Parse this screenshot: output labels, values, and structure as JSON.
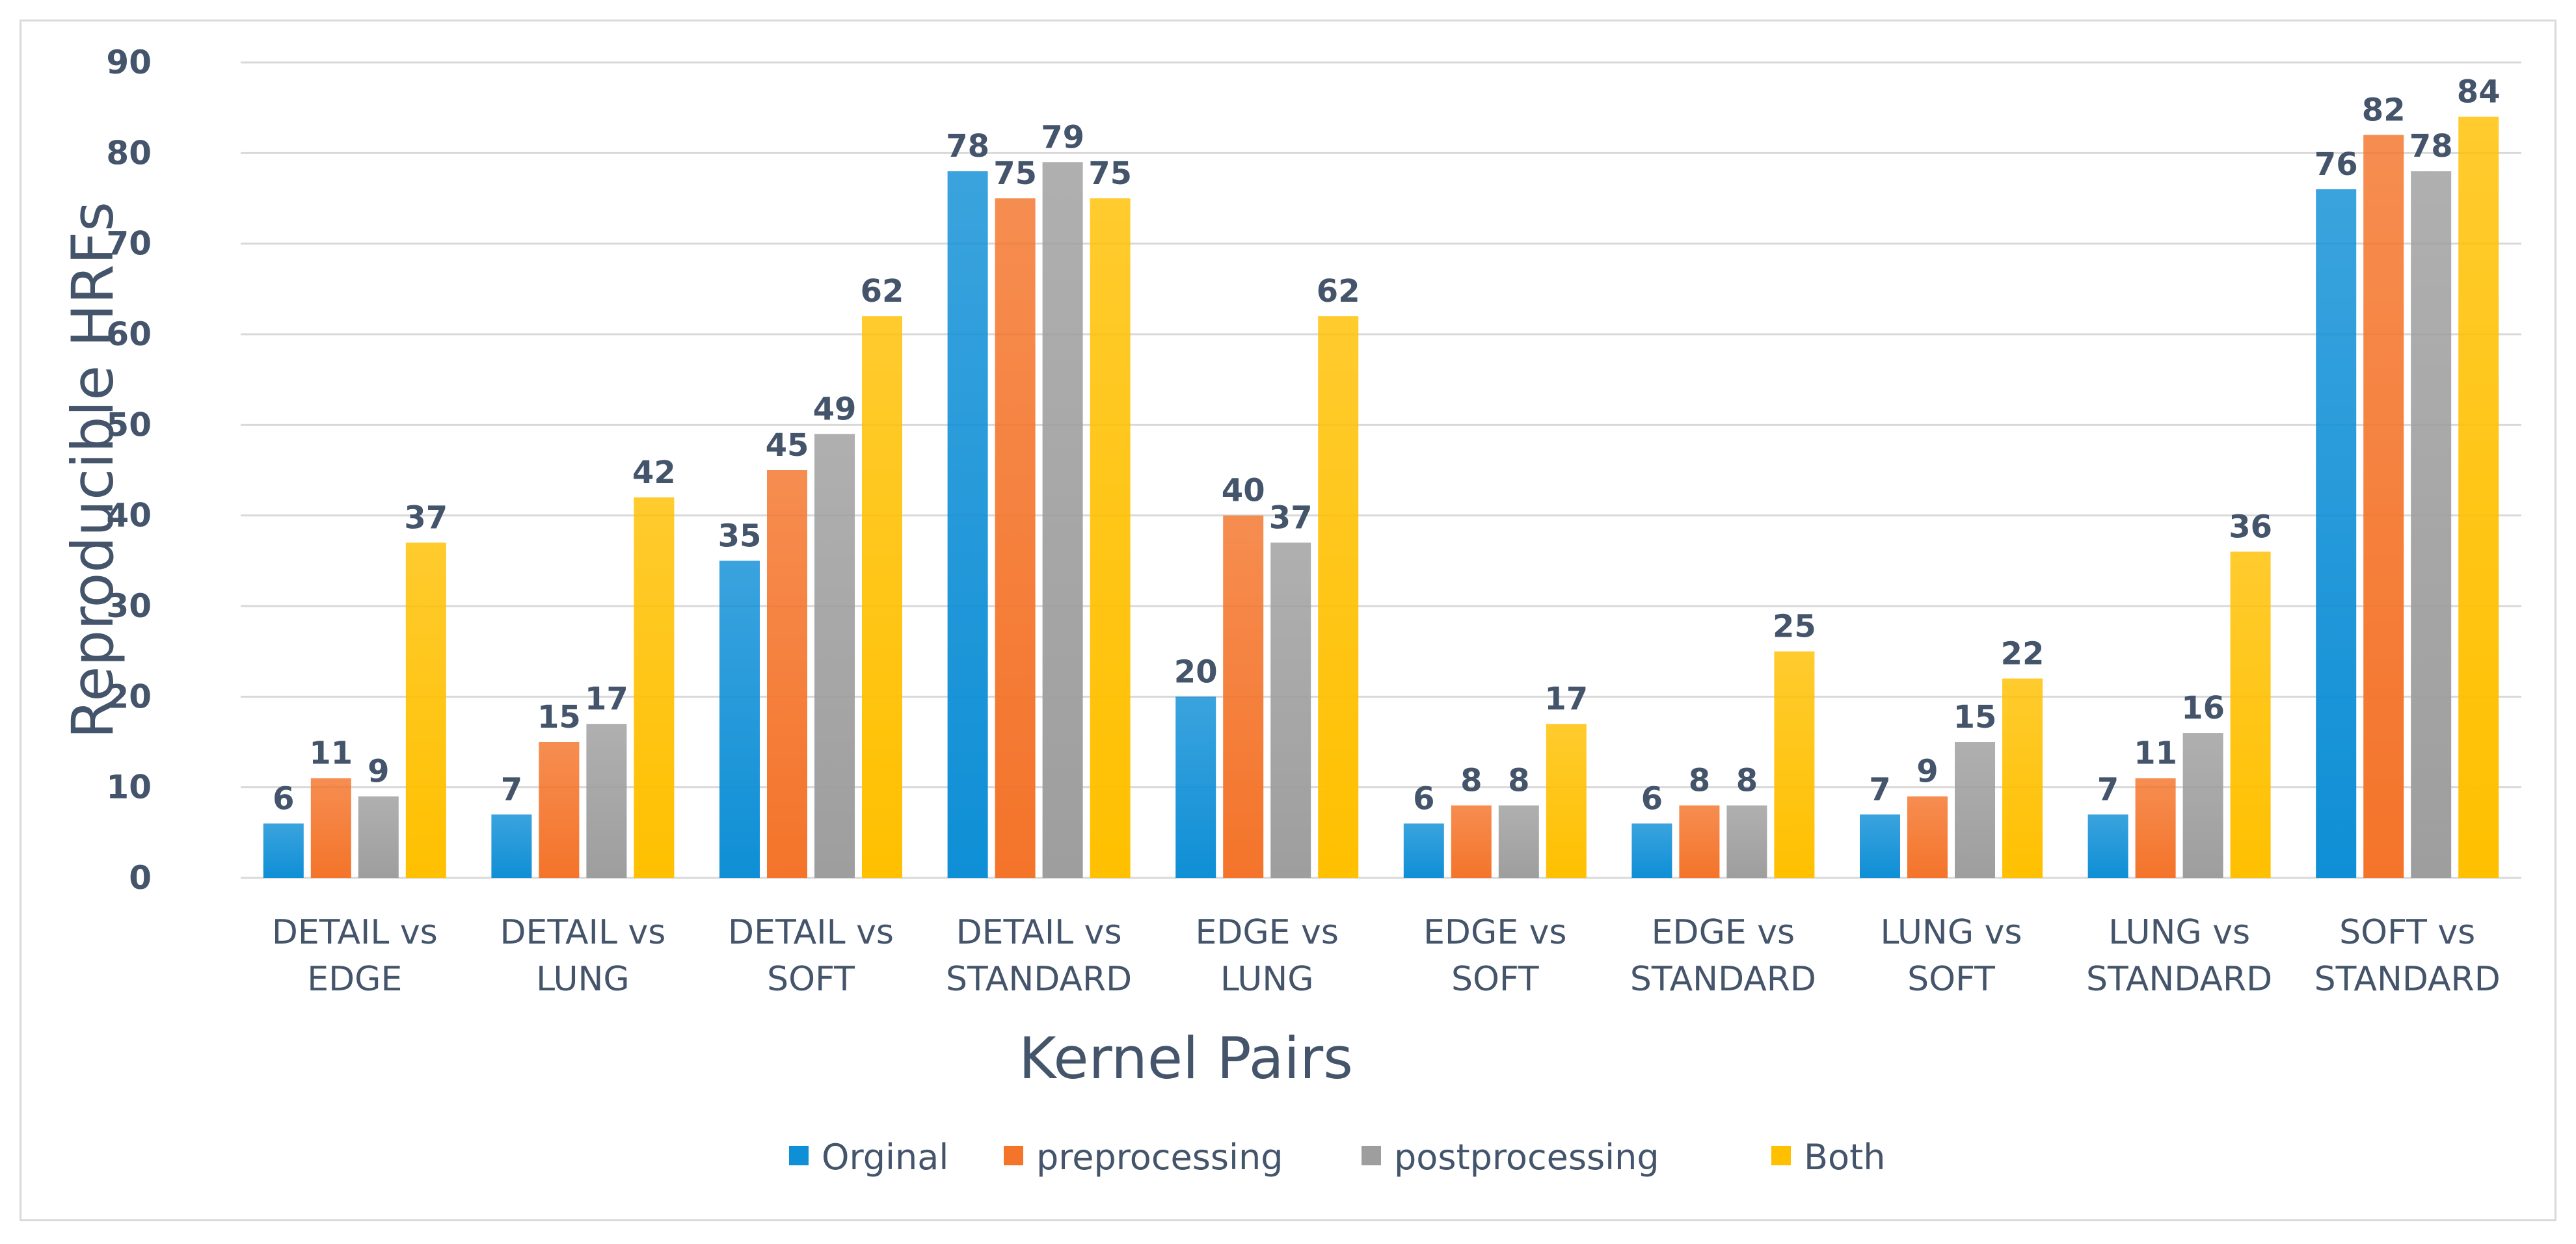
{
  "chart_data": {
    "type": "bar",
    "title": "",
    "xlabel": "Kernel Pairs",
    "ylabel": "Reproducible HRFs",
    "ylim": [
      0,
      90
    ],
    "yticks": [
      0,
      10,
      20,
      30,
      40,
      50,
      60,
      70,
      80,
      90
    ],
    "grid": true,
    "legend_position": "bottom",
    "categories": [
      [
        "DETAIL vs",
        "EDGE"
      ],
      [
        "DETAIL vs",
        "LUNG"
      ],
      [
        "DETAIL vs",
        "SOFT"
      ],
      [
        "DETAIL vs",
        "STANDARD"
      ],
      [
        "EDGE vs",
        "LUNG"
      ],
      [
        "EDGE vs",
        "SOFT"
      ],
      [
        "EDGE vs",
        "STANDARD"
      ],
      [
        "LUNG vs",
        "SOFT"
      ],
      [
        "LUNG vs",
        "STANDARD"
      ],
      [
        "SOFT vs",
        "STANDARD"
      ]
    ],
    "series": [
      {
        "name": "Orginal",
        "color": "#0f8fd6",
        "values": [
          6,
          7,
          35,
          78,
          20,
          6,
          6,
          7,
          7,
          76
        ]
      },
      {
        "name": "preprocessing",
        "color": "#f4742a",
        "values": [
          11,
          15,
          45,
          75,
          40,
          8,
          8,
          9,
          11,
          82
        ]
      },
      {
        "name": "postprocessing",
        "color": "#9e9e9e",
        "values": [
          9,
          17,
          49,
          79,
          37,
          8,
          8,
          15,
          16,
          78
        ]
      },
      {
        "name": "Both",
        "color": "#ffc000",
        "values": [
          37,
          42,
          62,
          75,
          62,
          17,
          25,
          22,
          36,
          84
        ]
      }
    ]
  }
}
